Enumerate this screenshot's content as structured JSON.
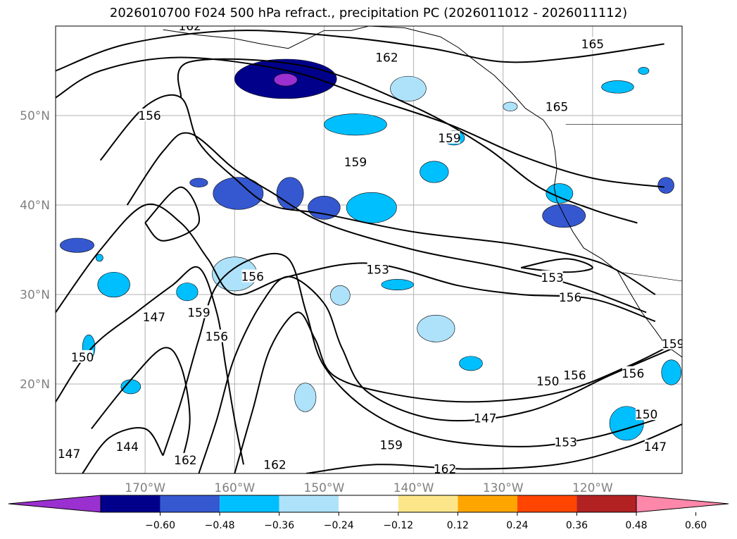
{
  "chart_data": {
    "type": "map-contour",
    "title": "2026010700 F024 500 hPa refract., precipitation PC (2026011012 - 2026011112)",
    "lon_ticks": [
      "170°W",
      "160°W",
      "150°W",
      "140°W",
      "130°W",
      "120°W"
    ],
    "lat_ticks": [
      "50°N",
      "40°N",
      "30°N",
      "20°N"
    ],
    "extent": {
      "lon": [
        -180,
        -110
      ],
      "lat": [
        10,
        60
      ]
    },
    "grid": true,
    "contour_levels": [
      144,
      147,
      150,
      153,
      156,
      159,
      162,
      165
    ],
    "contour_labels": [
      {
        "text": "162",
        "lon": -165.0,
        "lat": 60.0
      },
      {
        "text": "162",
        "lon": -143.0,
        "lat": 56.5
      },
      {
        "text": "165",
        "lon": -120.0,
        "lat": 58.0
      },
      {
        "text": "156",
        "lon": -169.5,
        "lat": 50.0
      },
      {
        "text": "159",
        "lon": -136.0,
        "lat": 47.5
      },
      {
        "text": "159",
        "lon": -146.5,
        "lat": 44.8
      },
      {
        "text": "165",
        "lon": -124.0,
        "lat": 51.0
      },
      {
        "text": "156",
        "lon": -158.0,
        "lat": 32.0
      },
      {
        "text": "153",
        "lon": -144.0,
        "lat": 32.8
      },
      {
        "text": "153",
        "lon": -124.5,
        "lat": 31.9
      },
      {
        "text": "156",
        "lon": -122.5,
        "lat": 29.7
      },
      {
        "text": "147",
        "lon": -169.0,
        "lat": 27.5
      },
      {
        "text": "159",
        "lon": -164.0,
        "lat": 28.0
      },
      {
        "text": "156",
        "lon": -162.0,
        "lat": 25.3
      },
      {
        "text": "150",
        "lon": -177.0,
        "lat": 23.0
      },
      {
        "text": "150",
        "lon": -125.0,
        "lat": 20.3
      },
      {
        "text": "156",
        "lon": -122.0,
        "lat": 21.0
      },
      {
        "text": "156",
        "lon": -115.5,
        "lat": 21.2
      },
      {
        "text": "159",
        "lon": -111.0,
        "lat": 24.5
      },
      {
        "text": "147",
        "lon": -132.0,
        "lat": 16.2
      },
      {
        "text": "150",
        "lon": -114.0,
        "lat": 16.6
      },
      {
        "text": "144",
        "lon": -172.0,
        "lat": 13.0
      },
      {
        "text": "147",
        "lon": -178.5,
        "lat": 12.2
      },
      {
        "text": "159",
        "lon": -142.5,
        "lat": 13.2
      },
      {
        "text": "153",
        "lon": -123.0,
        "lat": 13.5
      },
      {
        "text": "147",
        "lon": -113.0,
        "lat": 13.0
      },
      {
        "text": "162",
        "lon": -165.5,
        "lat": 11.5
      },
      {
        "text": "162",
        "lon": -155.5,
        "lat": 11.0
      },
      {
        "text": "162",
        "lon": -136.5,
        "lat": 10.5
      }
    ],
    "colorbar": {
      "tick_labels": [
        "−0.60",
        "−0.48",
        "−0.36",
        "−0.24",
        "−0.12",
        "0.12",
        "0.24",
        "0.36",
        "0.48",
        "0.60"
      ],
      "colors": [
        "#9b30d0",
        "#00008b",
        "#3558d0",
        "#00bfff",
        "#aee2fb",
        "#ffffff",
        "#fde68a",
        "#ffa500",
        "#ff4500",
        "#b22222",
        "#ff88aa"
      ],
      "extend": "both"
    },
    "precip_patches": [
      {
        "cat": 1,
        "lon": -154.3,
        "lat": 54.1,
        "rlon": 5.7,
        "rlat": 2.2
      },
      {
        "cat": 0,
        "lon": -154.3,
        "lat": 54.0,
        "rlon": 1.3,
        "rlat": 0.7
      },
      {
        "cat": 2,
        "lon": -159.6,
        "lat": 41.3,
        "rlon": 2.8,
        "rlat": 1.8
      },
      {
        "cat": 2,
        "lon": -153.8,
        "lat": 41.3,
        "rlon": 1.5,
        "rlat": 1.8
      },
      {
        "cat": 2,
        "lon": -150.0,
        "lat": 39.7,
        "rlon": 1.8,
        "rlat": 1.3
      },
      {
        "cat": 3,
        "lon": -144.7,
        "lat": 39.7,
        "rlon": 2.8,
        "rlat": 1.7
      },
      {
        "cat": 4,
        "lon": -148.2,
        "lat": 29.9,
        "rlon": 1.1,
        "rlat": 1.1
      },
      {
        "cat": 4,
        "lon": -160.0,
        "lat": 32.3,
        "rlon": 2.5,
        "rlat": 1.9
      },
      {
        "cat": 4,
        "lon": -137.5,
        "lat": 26.2,
        "rlon": 2.1,
        "rlat": 1.5
      },
      {
        "cat": 4,
        "lon": -140.6,
        "lat": 53.0,
        "rlon": 2.0,
        "rlat": 1.4
      },
      {
        "cat": 3,
        "lon": -146.5,
        "lat": 49.0,
        "rlon": 3.5,
        "rlat": 1.2
      },
      {
        "cat": 3,
        "lon": -135.5,
        "lat": 47.5,
        "rlon": 1.2,
        "rlat": 0.8
      },
      {
        "cat": 3,
        "lon": -137.7,
        "lat": 43.7,
        "rlon": 1.6,
        "rlat": 1.2
      },
      {
        "cat": 3,
        "lon": -123.7,
        "lat": 41.3,
        "rlon": 1.5,
        "rlat": 1.1
      },
      {
        "cat": 2,
        "lon": -123.2,
        "lat": 38.8,
        "rlon": 2.4,
        "rlat": 1.3
      },
      {
        "cat": 3,
        "lon": -173.5,
        "lat": 31.1,
        "rlon": 1.8,
        "rlat": 1.4
      },
      {
        "cat": 3,
        "lon": -165.3,
        "lat": 30.3,
        "rlon": 1.2,
        "rlat": 1.0
      },
      {
        "cat": 3,
        "lon": -171.6,
        "lat": 19.7,
        "rlon": 1.1,
        "rlat": 0.8
      },
      {
        "cat": 4,
        "lon": -152.1,
        "lat": 18.5,
        "rlon": 1.2,
        "rlat": 1.6
      },
      {
        "cat": 3,
        "lon": -133.6,
        "lat": 22.3,
        "rlon": 1.3,
        "rlat": 0.8
      },
      {
        "cat": 3,
        "lon": -116.2,
        "lat": 15.6,
        "rlon": 1.9,
        "rlat": 1.9
      },
      {
        "cat": 3,
        "lon": -111.2,
        "lat": 21.3,
        "rlon": 1.1,
        "rlat": 1.4
      },
      {
        "cat": 3,
        "lon": -141.8,
        "lat": 31.1,
        "rlon": 1.8,
        "rlat": 0.6
      },
      {
        "cat": 3,
        "lon": -176.3,
        "lat": 24.1,
        "rlon": 0.7,
        "rlat": 1.4
      },
      {
        "cat": 3,
        "lon": -175.1,
        "lat": 34.1,
        "rlon": 0.4,
        "rlat": 0.4
      },
      {
        "cat": 2,
        "lon": -177.6,
        "lat": 35.5,
        "rlon": 1.9,
        "rlat": 0.8
      },
      {
        "cat": 2,
        "lon": -111.8,
        "lat": 42.2,
        "rlon": 0.9,
        "rlat": 0.9
      },
      {
        "cat": 2,
        "lon": -164.0,
        "lat": 42.5,
        "rlon": 1.0,
        "rlat": 0.5
      },
      {
        "cat": 3,
        "lon": -114.3,
        "lat": 55.0,
        "rlon": 0.6,
        "rlat": 0.4
      },
      {
        "cat": 3,
        "lon": -117.2,
        "lat": 53.2,
        "rlon": 1.8,
        "rlat": 0.7
      },
      {
        "cat": 4,
        "lon": -129.2,
        "lat": 51.0,
        "rlon": 0.8,
        "rlat": 0.5
      }
    ]
  },
  "ui": {
    "precip_label": "precipitation PC"
  }
}
